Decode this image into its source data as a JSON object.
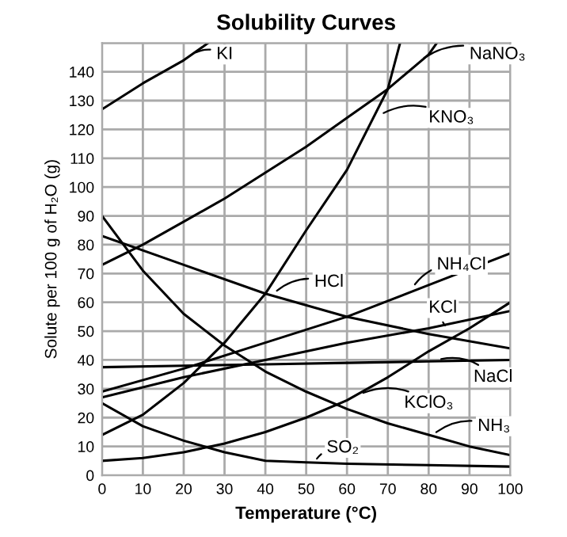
{
  "chart_data": {
    "type": "line",
    "title": "Solubility Curves",
    "xlabel": "Temperature (°C)",
    "ylabel": "Solute per 100 g of H₂O (g)",
    "xlim": [
      0,
      100
    ],
    "ylim": [
      0,
      150
    ],
    "xticks": [
      0,
      10,
      20,
      30,
      40,
      50,
      60,
      70,
      80,
      90,
      100
    ],
    "yticks": [
      0,
      10,
      20,
      30,
      40,
      50,
      60,
      70,
      80,
      90,
      100,
      110,
      120,
      130,
      140,
      {
        "value": 150,
        "label": null
      }
    ],
    "grid": true,
    "marker": "none",
    "line_style": "solid",
    "series": [
      {
        "color": "#000000",
        "x": [
          0,
          10,
          20,
          26
        ],
        "values": [
          127,
          136,
          144,
          150
        ]
      },
      {
        "color": "#000000",
        "x": [
          0,
          10,
          20,
          30,
          40,
          50,
          60,
          70,
          80,
          82
        ],
        "values": [
          73,
          80,
          88,
          96,
          105,
          114,
          124,
          134,
          146,
          150
        ]
      },
      {
        "color": "#000000",
        "x": [
          0,
          10,
          20,
          30,
          40,
          50,
          60,
          70,
          73
        ],
        "values": [
          14,
          21,
          32,
          46,
          63,
          85,
          106,
          134,
          150
        ]
      },
      {
        "color": "#000000",
        "x": [
          0,
          20,
          40,
          60,
          80,
          100
        ],
        "values": [
          29,
          37,
          46,
          55,
          66,
          77
        ]
      },
      {
        "color": "#000000",
        "x": [
          0,
          20,
          40,
          60,
          80,
          100
        ],
        "values": [
          83,
          73,
          63,
          55,
          49,
          44
        ]
      },
      {
        "color": "#000000",
        "x": [
          0,
          20,
          40,
          60,
          80,
          100
        ],
        "values": [
          27,
          34,
          40,
          46,
          51,
          57
        ]
      },
      {
        "color": "#000000",
        "x": [
          0,
          20,
          40,
          60,
          80,
          100
        ],
        "values": [
          37.5,
          38,
          38.5,
          39,
          39.5,
          40
        ]
      },
      {
        "color": "#000000",
        "x": [
          0,
          10,
          20,
          30,
          40,
          50,
          60,
          70,
          80,
          90,
          100
        ],
        "values": [
          5,
          6,
          8,
          11,
          15,
          20,
          26,
          34,
          43,
          51,
          60
        ]
      },
      {
        "color": "#000000",
        "x": [
          0,
          10,
          20,
          30,
          40,
          50,
          60,
          70,
          80,
          90,
          100
        ],
        "values": [
          90,
          71,
          56,
          45,
          36,
          29,
          23,
          18,
          14,
          10,
          7
        ]
      },
      {
        "color": "#000000",
        "x": [
          0,
          10,
          20,
          30,
          40,
          50,
          60,
          80,
          100
        ],
        "values": [
          25,
          17,
          12,
          8,
          5,
          4.5,
          4,
          3.5,
          3
        ]
      }
    ],
    "annotations": [
      {
        "text": "KI",
        "x": 22,
        "y": 146
      },
      {
        "text": "NaNO₃",
        "x": 78,
        "y": 144
      },
      {
        "text": "KNO₃",
        "x": 68,
        "y": 125
      },
      {
        "text": "NH₄Cl",
        "x": 76,
        "y": 65
      },
      {
        "text": "HCl",
        "x": 42,
        "y": 63
      },
      {
        "text": "KCl",
        "x": 84,
        "y": 52
      },
      {
        "text": "NaCl",
        "x": 82,
        "y": 40
      },
      {
        "text": "KClO₃",
        "x": 63,
        "y": 28
      },
      {
        "text": "NH₃",
        "x": 81,
        "y": 14
      },
      {
        "text": "SO₂",
        "x": 52,
        "y": 4.5
      }
    ]
  }
}
